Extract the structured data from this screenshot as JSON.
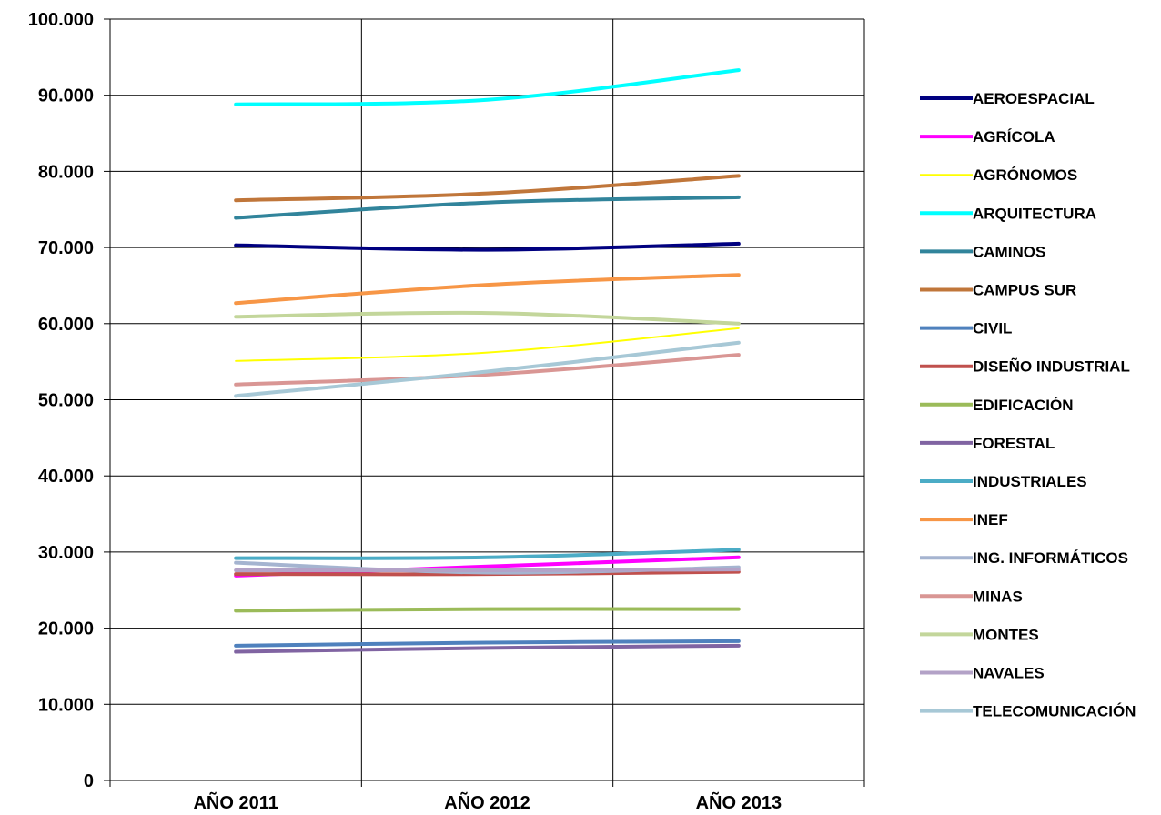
{
  "chart_data": {
    "type": "line",
    "categories": [
      "AÑO 2011",
      "AÑO 2012",
      "AÑO 2013"
    ],
    "ylim": [
      0,
      100000
    ],
    "ytick_values": [
      0,
      10000,
      20000,
      30000,
      40000,
      50000,
      60000,
      70000,
      80000,
      90000,
      100000
    ],
    "ytick_labels": [
      "0",
      "10.000",
      "20.000",
      "30.000",
      "40.000",
      "50.000",
      "60.000",
      "70.000",
      "80.000",
      "90.000",
      "100.000"
    ],
    "grid": true,
    "legend_position": "right",
    "series": [
      {
        "name": "AEROESPACIAL",
        "color": "#000080",
        "width": 4,
        "values": [
          70300,
          69700,
          70500
        ]
      },
      {
        "name": "AGRÍCOLA",
        "color": "#ff00ff",
        "width": 4,
        "values": [
          26900,
          28100,
          29300
        ]
      },
      {
        "name": "AGRÓNOMOS",
        "color": "#ffff00",
        "width": 2,
        "values": [
          55100,
          56200,
          59400
        ]
      },
      {
        "name": "ARQUITECTURA",
        "color": "#00ffff",
        "width": 4,
        "values": [
          88800,
          89400,
          93300
        ]
      },
      {
        "name": "CAMINOS",
        "color": "#31849b",
        "width": 4,
        "values": [
          73900,
          75900,
          76600
        ]
      },
      {
        "name": "CAMPUS SUR",
        "color": "#c0763a",
        "width": 4,
        "values": [
          76200,
          77100,
          79400
        ]
      },
      {
        "name": "CIVIL",
        "color": "#4f81bd",
        "width": 4,
        "values": [
          17700,
          18100,
          18300
        ]
      },
      {
        "name": "DISEÑO INDUSTRIAL",
        "color": "#c0504d",
        "width": 4,
        "values": [
          27100,
          27100,
          27400
        ]
      },
      {
        "name": "EDIFICACIÓN",
        "color": "#9bbb59",
        "width": 4,
        "values": [
          22300,
          22500,
          22500
        ]
      },
      {
        "name": "FORESTAL",
        "color": "#8064a2",
        "width": 4,
        "values": [
          16900,
          17400,
          17700
        ]
      },
      {
        "name": "INDUSTRIALES",
        "color": "#4bacc6",
        "width": 4,
        "values": [
          29200,
          29300,
          30300
        ]
      },
      {
        "name": "INEF",
        "color": "#f79646",
        "width": 4,
        "values": [
          62700,
          65100,
          66400
        ]
      },
      {
        "name": "ING. INFORMÁTICOS",
        "color": "#a5b4d0",
        "width": 4,
        "values": [
          28600,
          27300,
          28000
        ]
      },
      {
        "name": "MINAS",
        "color": "#d99694",
        "width": 4,
        "values": [
          52000,
          53300,
          55900
        ]
      },
      {
        "name": "MONTES",
        "color": "#c3d69b",
        "width": 4,
        "values": [
          60900,
          61400,
          60000
        ]
      },
      {
        "name": "NAVALES",
        "color": "#b3a2c7",
        "width": 4,
        "values": [
          27600,
          27600,
          27700
        ]
      },
      {
        "name": "TELECOMUNICACIÓN",
        "color": "#a7c8d6",
        "width": 4,
        "values": [
          50500,
          53700,
          57500
        ]
      }
    ]
  }
}
